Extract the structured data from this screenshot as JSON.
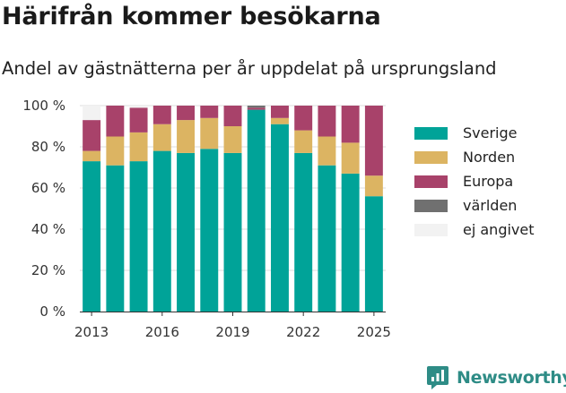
{
  "title": "Härifrån kommer besökarna",
  "subtitle": "Andel av gästnätterna per år uppdelat på ursprungsland",
  "brand": "Newsworthy",
  "colors": {
    "Sverige": "#00a398",
    "Norden": "#dcb462",
    "Europa": "#a8426a",
    "världen": "#707070",
    "ej angivet": "#f2f2f2",
    "brand": "#2e8c86"
  },
  "chart_data": {
    "type": "bar",
    "stacked": true,
    "years": [
      2013,
      2014,
      2015,
      2016,
      2017,
      2018,
      2019,
      2020,
      2021,
      2022,
      2023,
      2024,
      2025
    ],
    "series": [
      {
        "name": "Sverige",
        "values": [
          73,
          71,
          73,
          78,
          77,
          79,
          77,
          98,
          91,
          77,
          71,
          67,
          56
        ]
      },
      {
        "name": "Norden",
        "values": [
          5,
          14,
          14,
          13,
          16,
          15,
          13,
          0,
          3,
          11,
          14,
          15,
          10
        ]
      },
      {
        "name": "Europa",
        "values": [
          15,
          15,
          12,
          9,
          7,
          6,
          10,
          1,
          6,
          12,
          15,
          18,
          34
        ]
      },
      {
        "name": "världen",
        "values": [
          0,
          0,
          0,
          0,
          0,
          0,
          0,
          1,
          0,
          0,
          0,
          0,
          0
        ]
      },
      {
        "name": "ej angivet",
        "values": [
          7,
          0,
          1,
          0,
          0,
          0,
          0,
          0,
          0,
          0,
          0,
          0,
          0
        ]
      }
    ],
    "ylim": [
      0,
      100
    ],
    "yticks": [
      "0 %",
      "20 %",
      "40 %",
      "60 %",
      "80 %",
      "100 %"
    ],
    "xticks": [
      "2013",
      "2016",
      "2019",
      "2022",
      "2025"
    ],
    "grid": true,
    "legend_position": "right"
  }
}
